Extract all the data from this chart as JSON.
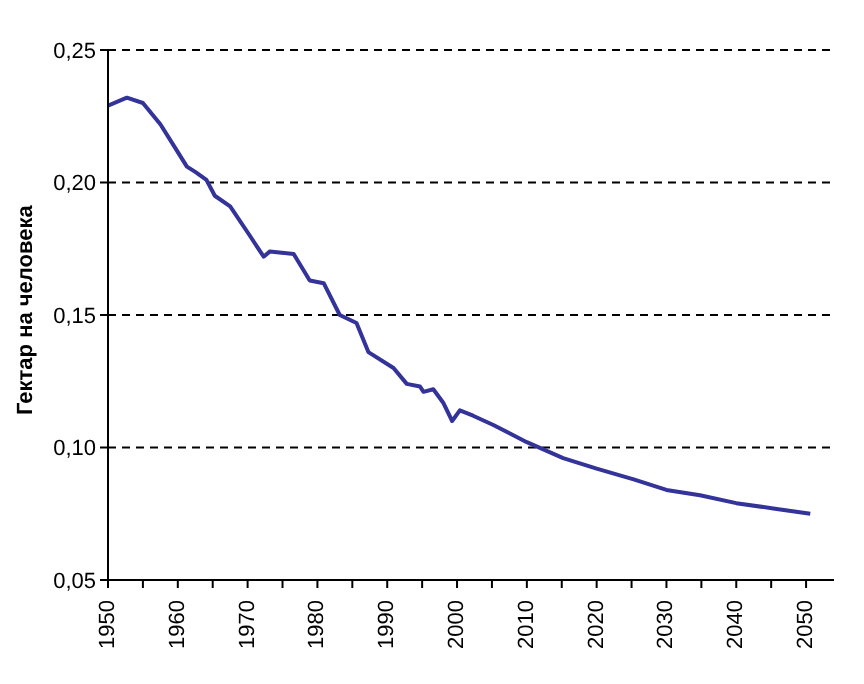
{
  "chart_data": {
    "type": "line",
    "ylabel": "Гектар на человека",
    "x": [
      1950,
      1952.7,
      1955,
      1957.5,
      1959.4,
      1961.3,
      1962.5,
      1964.1,
      1965.3,
      1967.5,
      1970.3,
      1972.3,
      1973.2,
      1976.6,
      1978.9,
      1980.9,
      1983.2,
      1985.6,
      1987.3,
      1990.9,
      1992.8,
      1994.7,
      1995.2,
      1996.6,
      1998,
      1999.3,
      2000.4,
      2002.3,
      2005.2,
      2010,
      2015.2,
      2020,
      2025.3,
      2030,
      2034.8,
      2040,
      2045.3,
      2050.6
    ],
    "series": [
      {
        "color": "#333399",
        "values": [
          0.229,
          0.232,
          0.23,
          0.222,
          0.214,
          0.206,
          0.204,
          0.201,
          0.195,
          0.191,
          0.18,
          0.172,
          0.174,
          0.173,
          0.163,
          0.162,
          0.15,
          0.147,
          0.136,
          0.13,
          0.124,
          0.123,
          0.121,
          0.122,
          0.117,
          0.11,
          0.114,
          0.112,
          0.1085,
          0.102,
          0.096,
          0.092,
          0.088,
          0.084,
          0.082,
          0.079,
          0.077,
          0.075
        ]
      }
    ],
    "xlim": [
      1950,
      2054
    ],
    "xticks": [
      1950,
      {
        "value": 1955,
        "label": null
      },
      1960,
      {
        "value": 1965,
        "label": null
      },
      1970,
      {
        "value": 1975,
        "label": null
      },
      1980,
      {
        "value": 1985,
        "label": null
      },
      1990,
      {
        "value": 1995,
        "label": null
      },
      2000,
      {
        "value": 2005,
        "label": null
      },
      2010,
      {
        "value": 2015,
        "label": null
      },
      2020,
      {
        "value": 2025,
        "label": null
      },
      2030,
      {
        "value": 2035,
        "label": null
      },
      2040,
      {
        "value": 2045,
        "label": null
      },
      2050
    ],
    "ylim": [
      0.05,
      0.25
    ],
    "yticks": [
      {
        "value": 0.05,
        "label": "0,05"
      },
      {
        "value": 0.1,
        "label": "0,10"
      },
      {
        "value": 0.15,
        "label": "0,15"
      },
      {
        "value": 0.2,
        "label": "0,20"
      },
      {
        "value": 0.25,
        "label": "0,25"
      }
    ],
    "grid": "y",
    "legend": false,
    "marker": "none",
    "line_style": "solid"
  }
}
